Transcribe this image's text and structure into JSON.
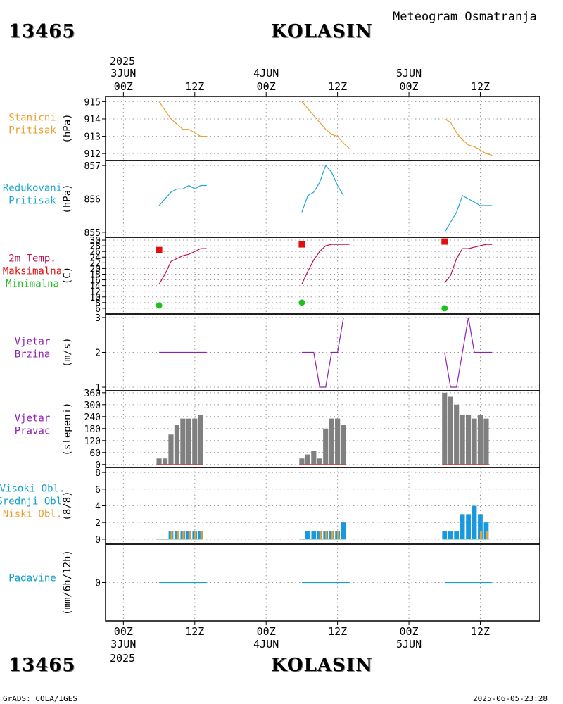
{
  "header": {
    "station_id": "13465",
    "station_name": "KOLASIN",
    "title": "Meteogram Osmatranja"
  },
  "footer": {
    "left": "GrADS: COLA/IGES",
    "right": "2025-06-05-23:28"
  },
  "time_axis": {
    "top_year": "2025",
    "bottom_year": "2025",
    "ticks": [
      {
        "t": 0,
        "time": "00Z",
        "date": "3JUN"
      },
      {
        "t": 12,
        "time": "12Z",
        "date": ""
      },
      {
        "t": 24,
        "time": "00Z",
        "date": "4JUN"
      },
      {
        "t": 36,
        "time": "12Z",
        "date": ""
      },
      {
        "t": 48,
        "time": "00Z",
        "date": "5JUN"
      },
      {
        "t": 60,
        "time": "12Z",
        "date": ""
      }
    ],
    "range_hours": [
      -3,
      70
    ]
  },
  "colors": {
    "orange": "#e8a030",
    "cyan": "#20a8d0",
    "red": "#e01010",
    "crimson": "#c01050",
    "green": "#20c020",
    "purple": "#9020b0",
    "gray": "#808080",
    "blue": "#1898e0",
    "teal": "#10a0c8"
  },
  "chart_data": [
    {
      "name": "stanicni-pritisak",
      "type": "line",
      "labels": [
        {
          "text": "Stanicni",
          "color": "#e8a030"
        },
        {
          "text": "Pritisak",
          "color": "#e8a030"
        }
      ],
      "unit": "(hPa)",
      "ylim": [
        911.6,
        915.3
      ],
      "yticks": [
        912,
        913,
        914,
        915
      ],
      "series": [
        {
          "name": "pressure",
          "color": "#e8a030",
          "segments": [
            [
              [
                6,
                915.0
              ],
              [
                7,
                914.5
              ],
              [
                8,
                914.0
              ],
              [
                9,
                913.7
              ],
              [
                10,
                913.4
              ],
              [
                11,
                913.4
              ],
              [
                12,
                913.2
              ],
              [
                13,
                913.0
              ],
              [
                14,
                913.0
              ]
            ],
            [
              [
                30,
                915.0
              ],
              [
                31,
                914.6
              ],
              [
                32,
                914.2
              ],
              [
                33,
                913.8
              ],
              [
                34,
                913.4
              ],
              [
                35,
                913.1
              ],
              [
                36,
                913.0
              ],
              [
                37,
                912.6
              ],
              [
                38,
                912.3
              ]
            ],
            [
              [
                54,
                914.0
              ],
              [
                55,
                913.8
              ],
              [
                56,
                913.2
              ],
              [
                57,
                912.8
              ],
              [
                58,
                912.5
              ],
              [
                59,
                912.4
              ],
              [
                60,
                912.2
              ],
              [
                61,
                912.0
              ],
              [
                62,
                911.9
              ]
            ]
          ]
        }
      ]
    },
    {
      "name": "redukovani-pritisak",
      "type": "line",
      "labels": [
        {
          "text": "Redukovani",
          "color": "#20a8d0"
        },
        {
          "text": "Pritisak",
          "color": "#20a8d0"
        }
      ],
      "unit": "(hPa)",
      "ylim": [
        854.85,
        857.15
      ],
      "yticks": [
        855,
        856,
        857
      ],
      "series": [
        {
          "name": "pressure",
          "color": "#20a8d0",
          "segments": [
            [
              [
                6,
                855.8
              ],
              [
                7,
                856.0
              ],
              [
                8,
                856.2
              ],
              [
                9,
                856.3
              ],
              [
                10,
                856.3
              ],
              [
                11,
                856.4
              ],
              [
                12,
                856.3
              ],
              [
                13,
                856.4
              ],
              [
                14,
                856.4
              ]
            ],
            [
              [
                30,
                855.6
              ],
              [
                31,
                856.1
              ],
              [
                32,
                856.2
              ],
              [
                33,
                856.5
              ],
              [
                34,
                857.0
              ],
              [
                35,
                856.8
              ],
              [
                36,
                856.4
              ],
              [
                37,
                856.1
              ]
            ],
            [
              [
                54,
                855.0
              ],
              [
                55,
                855.3
              ],
              [
                56,
                855.6
              ],
              [
                57,
                856.1
              ],
              [
                58,
                856.0
              ],
              [
                59,
                855.9
              ],
              [
                60,
                855.8
              ],
              [
                61,
                855.8
              ],
              [
                62,
                855.8
              ]
            ]
          ]
        }
      ]
    },
    {
      "name": "temperatura",
      "type": "line",
      "labels": [
        {
          "text": "2m Temp.",
          "color": "#c01050"
        },
        {
          "text": "Maksimalna",
          "color": "#e01010"
        },
        {
          "text": "Minimalna",
          "color": "#20c020"
        }
      ],
      "unit": "(C)",
      "ylim": [
        4,
        31
      ],
      "yticks": [
        6,
        8,
        10,
        12,
        14,
        16,
        18,
        20,
        22,
        24,
        26,
        28,
        30
      ],
      "series": [
        {
          "name": "2m Temp.",
          "color": "#c01050",
          "segments": [
            [
              [
                6,
                14.5
              ],
              [
                7,
                18
              ],
              [
                8,
                22.5
              ],
              [
                9,
                23.5
              ],
              [
                10,
                24.5
              ],
              [
                11,
                25
              ],
              [
                12,
                26
              ],
              [
                13,
                27
              ],
              [
                14,
                27
              ]
            ],
            [
              [
                30,
                14.5
              ],
              [
                31,
                19
              ],
              [
                32,
                23
              ],
              [
                33,
                26
              ],
              [
                34,
                28
              ],
              [
                35,
                28.5
              ],
              [
                36,
                28.5
              ],
              [
                37,
                28.5
              ],
              [
                38,
                28.5
              ]
            ],
            [
              [
                54,
                15
              ],
              [
                55,
                17.5
              ],
              [
                56,
                23.5
              ],
              [
                57,
                27
              ],
              [
                58,
                27
              ],
              [
                59,
                27.5
              ],
              [
                60,
                28
              ],
              [
                61,
                28.5
              ],
              [
                62,
                28.5
              ]
            ]
          ]
        }
      ],
      "markers": [
        {
          "name": "Maksimalna",
          "shape": "square",
          "color": "#e01010",
          "points": [
            [
              6,
              26.5
            ],
            [
              30,
              28.5
            ],
            [
              54,
              29.5
            ]
          ]
        },
        {
          "name": "Minimalna",
          "shape": "circle",
          "color": "#20c020",
          "points": [
            [
              6,
              7
            ],
            [
              30,
              8
            ],
            [
              54,
              6
            ]
          ]
        }
      ]
    },
    {
      "name": "vjetar-brzina",
      "type": "line",
      "labels": [
        {
          "text": "Vjetar",
          "color": "#9020b0"
        },
        {
          "text": "Brzina",
          "color": "#9020b0"
        }
      ],
      "unit": "(m/s)",
      "ylim": [
        0.9,
        3.1
      ],
      "yticks": [
        1,
        2,
        3
      ],
      "series": [
        {
          "name": "speed",
          "color": "#9020b0",
          "segments": [
            [
              [
                6,
                2
              ],
              [
                7,
                2
              ],
              [
                8,
                2
              ],
              [
                9,
                2
              ],
              [
                10,
                2
              ],
              [
                11,
                2
              ],
              [
                12,
                2
              ],
              [
                13,
                2
              ],
              [
                14,
                2
              ]
            ],
            [
              [
                30,
                2
              ],
              [
                31,
                2
              ],
              [
                32,
                2
              ],
              [
                33,
                1
              ],
              [
                34,
                1
              ],
              [
                35,
                2
              ],
              [
                36,
                2
              ],
              [
                37,
                3
              ]
            ],
            [
              [
                54,
                2
              ],
              [
                55,
                1
              ],
              [
                56,
                1
              ],
              [
                57,
                2
              ],
              [
                58,
                3
              ],
              [
                59,
                2
              ],
              [
                60,
                2
              ],
              [
                61,
                2
              ],
              [
                62,
                2
              ]
            ]
          ]
        }
      ]
    },
    {
      "name": "vjetar-pravac",
      "type": "bar",
      "labels": [
        {
          "text": "Vjetar",
          "color": "#9020b0"
        },
        {
          "text": "Pravac",
          "color": "#9020b0"
        }
      ],
      "unit": "(stepeni)",
      "ylim": [
        -15,
        370
      ],
      "yticks": [
        0,
        60,
        120,
        180,
        240,
        300,
        360
      ],
      "bar_width_hours": 0.85,
      "series": [
        {
          "name": "direction",
          "color": "#808080",
          "points": [
            [
              6,
              30
            ],
            [
              7,
              30
            ],
            [
              8,
              150
            ],
            [
              9,
              200
            ],
            [
              10,
              230
            ],
            [
              11,
              230
            ],
            [
              12,
              230
            ],
            [
              13,
              250
            ],
            [
              30,
              30
            ],
            [
              31,
              50
            ],
            [
              32,
              70
            ],
            [
              33,
              30
            ],
            [
              34,
              180
            ],
            [
              35,
              230
            ],
            [
              36,
              230
            ],
            [
              37,
              200
            ],
            [
              54,
              360
            ],
            [
              55,
              340
            ],
            [
              56,
              300
            ],
            [
              57,
              250
            ],
            [
              58,
              250
            ],
            [
              59,
              230
            ],
            [
              60,
              250
            ],
            [
              61,
              230
            ]
          ]
        }
      ]
    },
    {
      "name": "oblaci",
      "type": "bar",
      "labels": [
        {
          "text": "Visoki Obl.",
          "color": "#10a0c8"
        },
        {
          "text": "Srednji Obl.",
          "color": "#10a0c8"
        },
        {
          "text": "Niski Obl.",
          "color": "#e8a030"
        }
      ],
      "unit": "(8/8)",
      "ylim": [
        -0.6,
        8.6
      ],
      "yticks": [
        0,
        2,
        4,
        6,
        8
      ],
      "series": [
        {
          "name": "Visoki Obl.",
          "color": "#1898e0",
          "points": [
            [
              6,
              0
            ],
            [
              7,
              0
            ],
            [
              8,
              1
            ],
            [
              9,
              1
            ],
            [
              10,
              1
            ],
            [
              11,
              1
            ],
            [
              12,
              1
            ],
            [
              13,
              1
            ],
            [
              30,
              0
            ],
            [
              31,
              1
            ],
            [
              32,
              1
            ],
            [
              33,
              1
            ],
            [
              34,
              1
            ],
            [
              35,
              1
            ],
            [
              36,
              1
            ],
            [
              37,
              2
            ],
            [
              54,
              1
            ],
            [
              55,
              1
            ],
            [
              56,
              1
            ],
            [
              57,
              3
            ],
            [
              58,
              3
            ],
            [
              59,
              4
            ],
            [
              60,
              3
            ],
            [
              61,
              2
            ]
          ]
        },
        {
          "name": "Niski Obl.",
          "color": "#e8a030",
          "points": [
            [
              8,
              1
            ],
            [
              9,
              1
            ],
            [
              10,
              1
            ],
            [
              11,
              1
            ],
            [
              12,
              1
            ],
            [
              13,
              1
            ],
            [
              33,
              1
            ],
            [
              34,
              1
            ],
            [
              35,
              1
            ],
            [
              36,
              1
            ],
            [
              60,
              1
            ],
            [
              61,
              1
            ]
          ]
        }
      ]
    },
    {
      "name": "padavine",
      "type": "line",
      "labels": [
        {
          "text": "Padavine",
          "color": "#10a0c8"
        }
      ],
      "unit": "(mm/6h/12h)",
      "ylim": [
        -1.5,
        1.5
      ],
      "yticks": [
        0
      ],
      "series": [
        {
          "name": "precip",
          "color": "#10a0c8",
          "segments": [
            [
              [
                6,
                0
              ],
              [
                14,
                0
              ]
            ],
            [
              [
                30,
                0
              ],
              [
                38,
                0
              ]
            ],
            [
              [
                54,
                0
              ],
              [
                62,
                0
              ]
            ]
          ]
        }
      ]
    }
  ]
}
